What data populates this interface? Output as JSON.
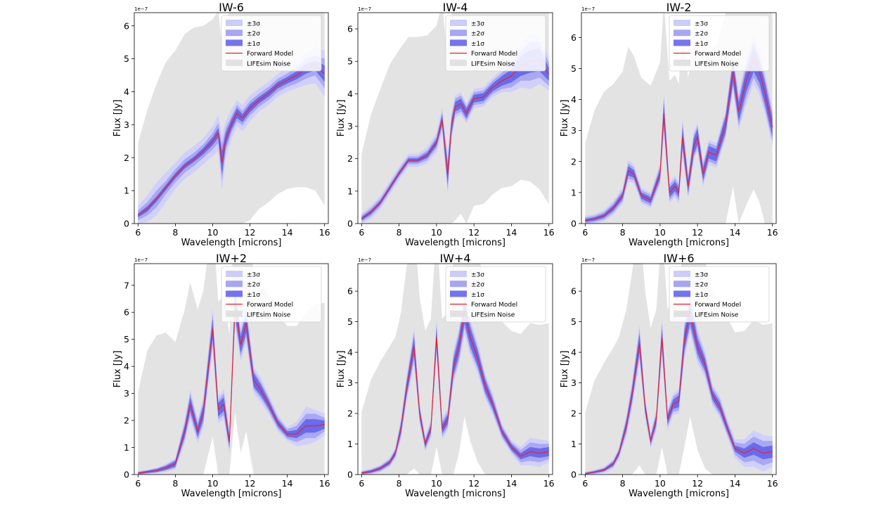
{
  "legend": {
    "items": [
      {
        "label": "±3σ",
        "color": "#ccccf8"
      },
      {
        "label": "±2σ",
        "color": "#a6a6f2"
      },
      {
        "label": "±1σ",
        "color": "#7474ee"
      },
      {
        "label": "Forward Model",
        "color": "#e8222a"
      },
      {
        "label": "LIFEsim Noise",
        "color": "#e1e1e1"
      }
    ],
    "placement": "top-right"
  },
  "colors": {
    "band3": "#d0d0fa",
    "band2": "#a8a8f4",
    "band1": "#6a6aea",
    "model": "#e8222a",
    "noise": "#e3e3e3"
  },
  "chart_data": [
    {
      "type": "area",
      "title": "IW-6",
      "xlabel": "Wavelength [microns]",
      "ylabel": "Flux [Jy]",
      "y_scale_label": "1e−7",
      "xlim": [
        5.8,
        16.2
      ],
      "ylim": [
        0,
        6.4
      ],
      "xticks": [
        "6",
        "8",
        "10",
        "12",
        "14",
        "16"
      ],
      "yticks": [
        "0",
        "1",
        "2",
        "3",
        "4",
        "5",
        "6"
      ],
      "grid": false,
      "x": [
        6,
        6.5,
        7,
        7.5,
        8,
        8.5,
        9,
        9.5,
        10,
        10.3,
        10.5,
        10.7,
        11,
        11.3,
        11.6,
        12,
        12.5,
        13,
        13.5,
        14,
        14.5,
        15,
        15.5,
        16
      ],
      "model": [
        0.25,
        0.45,
        0.75,
        1.1,
        1.45,
        1.75,
        1.95,
        2.2,
        2.5,
        2.75,
        1.85,
        2.55,
        3.0,
        3.35,
        3.2,
        3.5,
        3.75,
        3.95,
        4.2,
        4.35,
        4.5,
        4.7,
        4.8,
        4.55
      ],
      "sigma1": [
        0.06,
        0.08,
        0.08,
        0.08,
        0.08,
        0.08,
        0.08,
        0.1,
        0.12,
        0.15,
        0.35,
        0.2,
        0.15,
        0.15,
        0.12,
        0.12,
        0.1,
        0.1,
        0.1,
        0.1,
        0.12,
        0.15,
        0.15,
        0.25
      ],
      "sigma2": [
        0.15,
        0.2,
        0.25,
        0.2,
        0.2,
        0.2,
        0.2,
        0.2,
        0.25,
        0.3,
        0.55,
        0.35,
        0.25,
        0.25,
        0.22,
        0.22,
        0.2,
        0.2,
        0.2,
        0.2,
        0.25,
        0.3,
        0.3,
        0.45
      ],
      "sigma3": [
        0.3,
        0.4,
        0.5,
        0.45,
        0.4,
        0.4,
        0.4,
        0.4,
        0.45,
        0.55,
        0.85,
        0.55,
        0.45,
        0.4,
        0.4,
        0.4,
        0.35,
        0.35,
        0.35,
        0.35,
        0.4,
        0.5,
        0.55,
        0.7
      ],
      "noise": [
        2.2,
        3.0,
        3.5,
        3.8,
        3.8,
        4.0,
        4.0,
        3.8,
        3.7,
        3.7,
        3.6,
        3.6,
        3.6,
        3.5,
        3.4,
        3.4,
        3.3,
        3.3,
        3.3,
        3.3,
        3.4,
        3.6,
        3.8,
        4.0
      ]
    },
    {
      "type": "area",
      "title": "IW-4",
      "xlabel": "Wavelength [microns]",
      "ylabel": "Flux [Jy]",
      "y_scale_label": "1e−7",
      "xlim": [
        5.8,
        16.2
      ],
      "ylim": [
        0,
        6.5
      ],
      "xticks": [
        "6",
        "8",
        "10",
        "12",
        "14",
        "16"
      ],
      "yticks": [
        "0",
        "1",
        "2",
        "3",
        "4",
        "5",
        "6"
      ],
      "grid": false,
      "x": [
        6,
        6.5,
        7,
        7.5,
        8,
        8.5,
        9,
        9.5,
        10,
        10.3,
        10.6,
        10.8,
        11,
        11.3,
        11.6,
        12,
        12.5,
        13,
        13.5,
        14,
        14.5,
        15,
        15.5,
        16
      ],
      "model": [
        0.15,
        0.35,
        0.65,
        1.1,
        1.55,
        1.95,
        1.95,
        2.1,
        2.5,
        3.2,
        1.5,
        3.0,
        3.6,
        3.7,
        3.4,
        3.85,
        3.9,
        4.2,
        4.4,
        4.55,
        4.85,
        5.0,
        5.05,
        4.6
      ],
      "sigma1": [
        0.05,
        0.06,
        0.06,
        0.06,
        0.06,
        0.06,
        0.06,
        0.08,
        0.1,
        0.15,
        0.3,
        0.2,
        0.15,
        0.15,
        0.15,
        0.12,
        0.12,
        0.12,
        0.15,
        0.2,
        0.3,
        0.35,
        0.35,
        0.2
      ],
      "sigma2": [
        0.1,
        0.12,
        0.12,
        0.12,
        0.12,
        0.12,
        0.12,
        0.15,
        0.18,
        0.25,
        0.45,
        0.3,
        0.25,
        0.25,
        0.22,
        0.2,
        0.2,
        0.2,
        0.25,
        0.35,
        0.45,
        0.6,
        0.55,
        0.35
      ],
      "sigma3": [
        0.15,
        0.2,
        0.2,
        0.2,
        0.2,
        0.2,
        0.2,
        0.25,
        0.3,
        0.4,
        0.6,
        0.45,
        0.35,
        0.35,
        0.3,
        0.3,
        0.3,
        0.3,
        0.35,
        0.5,
        0.65,
        0.85,
        0.75,
        0.5
      ],
      "noise": [
        2.0,
        3.0,
        3.5,
        3.8,
        3.8,
        3.8,
        3.8,
        3.7,
        3.6,
        3.6,
        3.5,
        3.5,
        3.5,
        3.4,
        3.4,
        3.3,
        3.3,
        3.3,
        3.3,
        3.4,
        3.5,
        3.7,
        4.0,
        4.0
      ]
    },
    {
      "type": "area",
      "title": "IW-2",
      "xlabel": "Wavelength [microns]",
      "ylabel": "Flux [Jy]",
      "y_scale_label": "1e−7",
      "xlim": [
        5.8,
        16.2
      ],
      "ylim": [
        0,
        6.8
      ],
      "xticks": [
        "6",
        "8",
        "10",
        "12",
        "14",
        "16"
      ],
      "yticks": [
        "0",
        "1",
        "2",
        "3",
        "4",
        "5",
        "6"
      ],
      "grid": false,
      "x": [
        6,
        6.5,
        7,
        7.5,
        8,
        8.3,
        8.6,
        9,
        9.5,
        10,
        10.2,
        10.5,
        10.8,
        11,
        11.2,
        11.5,
        11.8,
        12,
        12.3,
        12.6,
        13,
        13.5,
        13.9,
        14.2,
        14.6,
        15,
        15.3,
        15.6,
        16
      ],
      "model": [
        0.1,
        0.15,
        0.25,
        0.5,
        0.9,
        1.7,
        1.6,
        0.9,
        0.75,
        1.6,
        3.55,
        1.0,
        1.2,
        1.0,
        2.8,
        1.2,
        2.5,
        2.8,
        1.6,
        2.3,
        2.2,
        3.2,
        4.9,
        3.6,
        4.6,
        5.3,
        4.9,
        4.2,
        3.1
      ],
      "sigma1": [
        0.05,
        0.05,
        0.06,
        0.08,
        0.1,
        0.15,
        0.12,
        0.1,
        0.1,
        0.15,
        0.35,
        0.15,
        0.15,
        0.15,
        0.3,
        0.2,
        0.25,
        0.25,
        0.2,
        0.2,
        0.2,
        0.25,
        0.35,
        0.3,
        0.35,
        0.4,
        0.35,
        0.35,
        0.3
      ],
      "sigma2": [
        0.1,
        0.1,
        0.12,
        0.15,
        0.18,
        0.25,
        0.2,
        0.18,
        0.18,
        0.25,
        0.5,
        0.25,
        0.25,
        0.25,
        0.45,
        0.3,
        0.35,
        0.35,
        0.3,
        0.3,
        0.3,
        0.35,
        0.45,
        0.45,
        0.55,
        0.6,
        0.55,
        0.5,
        0.45
      ],
      "sigma3": [
        0.15,
        0.15,
        0.18,
        0.22,
        0.25,
        0.35,
        0.3,
        0.25,
        0.25,
        0.35,
        0.65,
        0.35,
        0.35,
        0.35,
        0.6,
        0.4,
        0.45,
        0.45,
        0.4,
        0.4,
        0.4,
        0.45,
        0.6,
        0.6,
        0.75,
        0.8,
        0.75,
        0.65,
        0.6
      ],
      "noise": [
        2.5,
        3.5,
        4.0,
        4.0,
        4.0,
        4.0,
        3.8,
        3.8,
        3.7,
        3.6,
        3.6,
        3.6,
        3.6,
        3.5,
        3.5,
        3.5,
        3.4,
        3.4,
        3.4,
        3.4,
        3.5,
        3.6,
        3.7,
        3.8,
        4.0,
        4.2,
        4.2,
        4.2,
        4.0
      ]
    },
    {
      "type": "area",
      "title": "IW+2",
      "xlabel": "Wavelength [microns]",
      "ylabel": "Flux [Jy]",
      "y_scale_label": "1e−7",
      "xlim": [
        5.8,
        16.2
      ],
      "ylim": [
        0,
        7.8
      ],
      "xticks": [
        "6",
        "8",
        "10",
        "12",
        "14",
        "16"
      ],
      "yticks": [
        "0",
        "1",
        "2",
        "3",
        "4",
        "5",
        "6",
        "7"
      ],
      "grid": false,
      "x": [
        6,
        6.5,
        7,
        7.5,
        8,
        8.5,
        8.8,
        9.2,
        9.5,
        10,
        10.3,
        10.6,
        10.9,
        11.2,
        11.5,
        11.8,
        12.2,
        12.6,
        13,
        13.5,
        14,
        14.5,
        15,
        15.5,
        16
      ],
      "model": [
        0.05,
        0.1,
        0.15,
        0.25,
        0.4,
        1.6,
        2.6,
        1.6,
        2.3,
        5.4,
        2.4,
        2.6,
        1.2,
        6.3,
        4.8,
        5.6,
        3.5,
        3.1,
        2.6,
        1.9,
        1.5,
        1.5,
        1.8,
        1.8,
        1.85
      ],
      "sigma1": [
        0.03,
        0.04,
        0.05,
        0.07,
        0.1,
        0.2,
        0.25,
        0.2,
        0.25,
        0.35,
        0.25,
        0.25,
        0.2,
        0.4,
        0.3,
        0.35,
        0.25,
        0.2,
        0.15,
        0.12,
        0.1,
        0.15,
        0.25,
        0.25,
        0.15
      ],
      "sigma2": [
        0.05,
        0.06,
        0.08,
        0.1,
        0.15,
        0.3,
        0.4,
        0.3,
        0.4,
        0.55,
        0.35,
        0.4,
        0.3,
        0.6,
        0.45,
        0.5,
        0.35,
        0.3,
        0.25,
        0.2,
        0.18,
        0.3,
        0.45,
        0.45,
        0.25
      ],
      "sigma3": [
        0.08,
        0.08,
        0.1,
        0.15,
        0.2,
        0.45,
        0.55,
        0.45,
        0.55,
        0.75,
        0.5,
        0.55,
        0.45,
        0.85,
        0.6,
        0.7,
        0.5,
        0.45,
        0.35,
        0.3,
        0.25,
        0.45,
        0.7,
        0.6,
        0.4
      ],
      "noise": [
        3.0,
        4.5,
        5.0,
        5.0,
        4.5,
        4.5,
        4.5,
        4.5,
        4.5,
        4.0,
        4.0,
        4.0,
        4.0,
        4.0,
        4.0,
        4.0,
        4.0,
        4.0,
        4.0,
        4.0,
        4.0,
        4.0,
        4.2,
        4.5,
        4.5
      ]
    },
    {
      "type": "area",
      "title": "IW+4",
      "xlabel": "Wavelength [microns]",
      "ylabel": "Flux [Jy]",
      "y_scale_label": "1e−7",
      "xlim": [
        5.8,
        16.2
      ],
      "ylim": [
        0,
        6.9
      ],
      "xticks": [
        "6",
        "8",
        "10",
        "12",
        "14",
        "16"
      ],
      "yticks": [
        "0",
        "1",
        "2",
        "3",
        "4",
        "5",
        "6"
      ],
      "grid": false,
      "x": [
        6,
        6.5,
        7,
        7.5,
        7.8,
        8.1,
        8.4,
        8.8,
        9.1,
        9.4,
        9.7,
        10,
        10.3,
        10.6,
        10.9,
        11.2,
        11.5,
        11.8,
        12.2,
        12.6,
        13,
        13.5,
        14,
        14.5,
        15,
        15.5,
        16
      ],
      "model": [
        0.05,
        0.1,
        0.2,
        0.4,
        0.7,
        1.5,
        2.8,
        4.2,
        2.0,
        1.0,
        1.5,
        4.5,
        1.5,
        1.8,
        3.5,
        4.2,
        5.3,
        4.5,
        3.8,
        2.9,
        2.3,
        1.4,
        0.9,
        0.6,
        0.75,
        0.7,
        0.75
      ],
      "sigma1": [
        0.03,
        0.04,
        0.05,
        0.06,
        0.08,
        0.15,
        0.2,
        0.3,
        0.15,
        0.1,
        0.12,
        0.3,
        0.15,
        0.15,
        0.25,
        0.3,
        0.35,
        0.3,
        0.25,
        0.2,
        0.15,
        0.1,
        0.1,
        0.1,
        0.15,
        0.15,
        0.15
      ],
      "sigma2": [
        0.05,
        0.06,
        0.08,
        0.1,
        0.12,
        0.25,
        0.3,
        0.45,
        0.25,
        0.18,
        0.2,
        0.45,
        0.25,
        0.25,
        0.4,
        0.45,
        0.5,
        0.45,
        0.35,
        0.3,
        0.25,
        0.18,
        0.15,
        0.2,
        0.3,
        0.3,
        0.25
      ],
      "sigma3": [
        0.08,
        0.1,
        0.12,
        0.15,
        0.2,
        0.35,
        0.45,
        0.6,
        0.35,
        0.25,
        0.3,
        0.6,
        0.35,
        0.35,
        0.55,
        0.6,
        0.7,
        0.6,
        0.5,
        0.4,
        0.35,
        0.25,
        0.22,
        0.3,
        0.45,
        0.45,
        0.35
      ],
      "noise": [
        2.0,
        3.0,
        3.5,
        3.8,
        3.8,
        3.8,
        4.0,
        4.0,
        3.8,
        3.7,
        3.6,
        3.6,
        3.6,
        3.5,
        3.5,
        3.5,
        3.4,
        3.4,
        3.4,
        3.4,
        3.5,
        3.6,
        3.8,
        4.0,
        4.2,
        4.2,
        4.2
      ]
    },
    {
      "type": "area",
      "title": "IW+6",
      "xlabel": "Wavelength [microns]",
      "ylabel": "Flux [Jy]",
      "y_scale_label": "1e−7",
      "xlim": [
        5.8,
        16.2
      ],
      "ylim": [
        0,
        6.9
      ],
      "xticks": [
        "6",
        "8",
        "10",
        "12",
        "14",
        "16"
      ],
      "yticks": [
        "0",
        "1",
        "2",
        "3",
        "4",
        "5",
        "6"
      ],
      "grid": false,
      "x": [
        6,
        6.5,
        7,
        7.5,
        7.8,
        8.2,
        8.5,
        8.9,
        9.2,
        9.5,
        9.8,
        10.1,
        10.4,
        10.7,
        11,
        11.3,
        11.6,
        12,
        12.4,
        12.8,
        13.2,
        13.6,
        14,
        14.5,
        15,
        15.5,
        16
      ],
      "model": [
        0.03,
        0.08,
        0.15,
        0.35,
        0.7,
        1.6,
        2.6,
        4.3,
        2.2,
        1.1,
        1.8,
        4.5,
        1.8,
        2.3,
        2.4,
        4.4,
        5.3,
        4.2,
        3.6,
        2.6,
        2.2,
        1.5,
        0.85,
        0.7,
        0.85,
        0.7,
        0.75
      ],
      "sigma1": [
        0.02,
        0.03,
        0.04,
        0.06,
        0.08,
        0.15,
        0.2,
        0.3,
        0.15,
        0.1,
        0.15,
        0.3,
        0.15,
        0.15,
        0.2,
        0.3,
        0.35,
        0.25,
        0.2,
        0.15,
        0.15,
        0.12,
        0.1,
        0.15,
        0.2,
        0.2,
        0.2
      ],
      "sigma2": [
        0.04,
        0.05,
        0.06,
        0.1,
        0.12,
        0.25,
        0.3,
        0.45,
        0.25,
        0.18,
        0.25,
        0.45,
        0.25,
        0.25,
        0.3,
        0.45,
        0.5,
        0.4,
        0.3,
        0.25,
        0.25,
        0.2,
        0.2,
        0.3,
        0.4,
        0.4,
        0.35
      ],
      "sigma3": [
        0.06,
        0.08,
        0.1,
        0.15,
        0.2,
        0.35,
        0.45,
        0.6,
        0.35,
        0.25,
        0.35,
        0.6,
        0.35,
        0.35,
        0.4,
        0.6,
        0.65,
        0.55,
        0.45,
        0.35,
        0.35,
        0.3,
        0.3,
        0.45,
        0.6,
        0.6,
        0.5
      ],
      "noise": [
        2.0,
        3.0,
        3.5,
        3.8,
        3.8,
        3.8,
        4.0,
        4.0,
        3.8,
        3.7,
        3.6,
        3.6,
        3.6,
        3.5,
        3.5,
        3.5,
        3.4,
        3.4,
        3.4,
        3.4,
        3.5,
        3.6,
        3.8,
        4.0,
        4.2,
        4.2,
        4.2
      ]
    }
  ]
}
